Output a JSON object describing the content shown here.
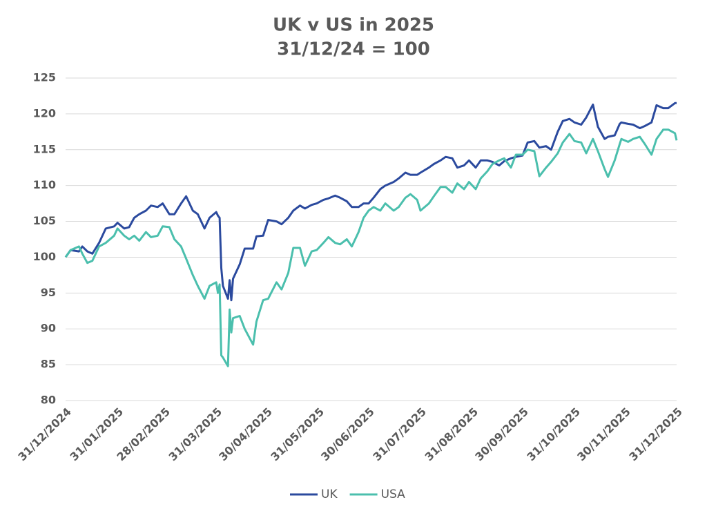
{
  "chart_data": {
    "type": "line",
    "title": "UK v US in 2025",
    "subtitle": "31/12/24 = 100",
    "x": [
      "31/12/2024",
      "03/01/2025",
      "08/01/2025",
      "10/01/2025",
      "13/01/2025",
      "16/01/2025",
      "20/01/2025",
      "24/01/2025",
      "29/01/2025",
      "31/01/2025",
      "04/02/2025",
      "07/02/2025",
      "10/02/2025",
      "13/02/2025",
      "17/02/2025",
      "20/02/2025",
      "24/02/2025",
      "27/02/2025",
      "03/03/2025",
      "06/03/2025",
      "10/03/2025",
      "13/03/2025",
      "17/03/2025",
      "20/03/2025",
      "24/03/2025",
      "27/03/2025",
      "31/03/2025",
      "01/04/2025",
      "02/04/2025",
      "03/04/2025",
      "04/04/2025",
      "07/04/2025",
      "08/04/2025",
      "09/04/2025",
      "10/04/2025",
      "14/04/2025",
      "17/04/2025",
      "22/04/2025",
      "24/04/2025",
      "28/04/2025",
      "01/05/2025",
      "06/05/2025",
      "09/05/2025",
      "13/05/2025",
      "16/05/2025",
      "20/05/2025",
      "23/05/2025",
      "27/05/2025",
      "30/05/2025",
      "03/06/2025",
      "06/06/2025",
      "10/06/2025",
      "13/06/2025",
      "17/06/2025",
      "20/06/2025",
      "24/06/2025",
      "27/06/2025",
      "30/06/2025",
      "03/07/2025",
      "07/07/2025",
      "10/07/2025",
      "15/07/2025",
      "18/07/2025",
      "22/07/2025",
      "25/07/2025",
      "29/07/2025",
      "31/07/2025",
      "05/08/2025",
      "08/08/2025",
      "12/08/2025",
      "15/08/2025",
      "19/08/2025",
      "22/08/2025",
      "26/08/2025",
      "29/08/2025",
      "02/09/2025",
      "05/09/2025",
      "09/09/2025",
      "12/09/2025",
      "16/09/2025",
      "19/09/2025",
      "23/09/2025",
      "26/09/2025",
      "30/09/2025",
      "03/10/2025",
      "07/10/2025",
      "10/10/2025",
      "14/10/2025",
      "17/10/2025",
      "21/10/2025",
      "24/10/2025",
      "28/10/2025",
      "31/10/2025",
      "04/11/2025",
      "07/11/2025",
      "11/11/2025",
      "14/11/2025",
      "18/11/2025",
      "20/11/2025",
      "24/11/2025",
      "27/11/2025",
      "28/11/2025",
      "02/12/2025",
      "05/12/2025",
      "09/12/2025",
      "12/12/2025",
      "16/12/2025",
      "19/12/2025",
      "23/12/2025",
      "26/12/2025",
      "30/12/2025",
      "31/12/2025"
    ],
    "series": [
      {
        "name": "UK",
        "color": "#2b4a9e",
        "values": [
          100,
          101,
          100.8,
          101.5,
          100.8,
          100.5,
          102,
          104,
          104.3,
          104.8,
          104,
          104.2,
          105.5,
          106,
          106.5,
          107.2,
          107,
          107.5,
          106,
          106,
          107.5,
          108.5,
          106.5,
          106,
          104,
          105.5,
          106.3,
          105.8,
          105.5,
          98.5,
          96,
          94.2,
          96.8,
          94,
          97,
          99,
          101.2,
          101.2,
          102.9,
          103,
          105.2,
          105,
          104.6,
          105.5,
          106.5,
          107.2,
          106.8,
          107.3,
          107.5,
          108,
          108.2,
          108.6,
          108.3,
          107.8,
          107,
          107,
          107.5,
          107.5,
          108.3,
          109.5,
          110,
          110.5,
          111,
          111.8,
          111.5,
          111.5,
          111.8,
          112.5,
          113,
          113.5,
          114,
          113.8,
          112.5,
          112.8,
          113.5,
          112.5,
          113.5,
          113.5,
          113.3,
          112.8,
          113.4,
          113.8,
          114,
          114.2,
          116,
          116.2,
          115.3,
          115.5,
          115,
          117.5,
          119,
          119.3,
          118.8,
          118.5,
          119.5,
          121.3,
          118.2,
          116.5,
          116.8,
          117,
          118.6,
          118.8,
          118.6,
          118.5,
          118,
          118.3,
          118.8,
          121.2,
          120.8,
          120.8,
          121.5,
          121.5
        ]
      },
      {
        "name": "USA",
        "color": "#4bbfad",
        "values": [
          100,
          101,
          101.5,
          100.5,
          99.2,
          99.5,
          101.5,
          102,
          103,
          104,
          103,
          102.5,
          103,
          102.3,
          103.5,
          102.8,
          103,
          104.3,
          104.2,
          102.5,
          101.5,
          99.8,
          97.5,
          96,
          94.2,
          96,
          96.5,
          95,
          96.2,
          86.3,
          86,
          84.8,
          92.7,
          89.5,
          91.5,
          91.8,
          90,
          87.8,
          91,
          94,
          94.2,
          96.5,
          95.5,
          97.8,
          101.3,
          101.3,
          98.8,
          100.8,
          101,
          102,
          102.8,
          102,
          101.8,
          102.5,
          101.5,
          103.5,
          105.5,
          106.5,
          107,
          106.5,
          107.5,
          106.5,
          107,
          108.3,
          108.8,
          108,
          106.5,
          107.5,
          108.5,
          109.8,
          109.8,
          109,
          110.3,
          109.5,
          110.5,
          109.5,
          111,
          112,
          113,
          113.5,
          113.8,
          112.5,
          114.3,
          114.3,
          115,
          114.8,
          111.3,
          112.5,
          113.3,
          114.5,
          116,
          117.2,
          116.2,
          116,
          114.5,
          116.5,
          114.8,
          112.3,
          111.2,
          113.5,
          115.8,
          116.5,
          116.1,
          116.5,
          116.8,
          115.8,
          114.3,
          116.5,
          117.8,
          117.8,
          117.3,
          116.3
        ]
      }
    ],
    "xticks": [
      "31/12/2024",
      "31/01/2025",
      "28/02/2025",
      "31/03/2025",
      "30/04/2025",
      "31/05/2025",
      "30/06/2025",
      "31/07/2025",
      "31/08/2025",
      "30/09/2025",
      "31/10/2025",
      "30/11/2025",
      "31/12/2025"
    ],
    "ylim": [
      80,
      125
    ],
    "yticks": [
      80,
      85,
      90,
      95,
      100,
      105,
      110,
      115,
      120,
      125
    ],
    "grid": true,
    "legend": "bottom"
  }
}
